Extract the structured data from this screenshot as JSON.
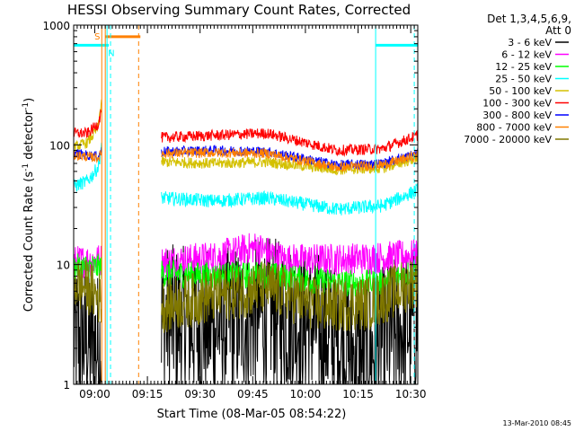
{
  "chart_data": {
    "type": "line",
    "title": "HESSI Observing Summary Count Rates, Corrected",
    "xlabel": "Start Time (08-Mar-05 08:54:22)",
    "ylabel_main": "Corrected Count Rate (s",
    "ylabel_sup1": "-1",
    "ylabel_mid": " detector",
    "ylabel_sup2": "-1",
    "ylabel_end": ")",
    "y_scale": "log",
    "ylim": [
      1,
      1000
    ],
    "xlim_min": [
      0,
      98
    ],
    "x_ticks": [
      {
        "min": 6,
        "label": "09:00"
      },
      {
        "min": 21,
        "label": "09:15"
      },
      {
        "min": 36,
        "label": "09:30"
      },
      {
        "min": 51,
        "label": "09:45"
      },
      {
        "min": 66,
        "label": "10:00"
      },
      {
        "min": 81,
        "label": "10:15"
      },
      {
        "min": 96,
        "label": "10:30"
      }
    ],
    "y_ticks": [
      {
        "value": 1,
        "label": "1"
      },
      {
        "value": 10,
        "label": "10"
      },
      {
        "value": 100,
        "label": "100"
      },
      {
        "value": 1000,
        "label": "1000"
      }
    ],
    "legend": {
      "placement": "right",
      "header_line1": "Det 1,3,4,5,6,9,",
      "header_line2": "Att 0",
      "entries": [
        {
          "label": "3 - 6 keV",
          "color": "#000000"
        },
        {
          "label": "6 - 12 keV",
          "color": "#ff00ff"
        },
        {
          "label": "12 - 25 keV",
          "color": "#00ff00"
        },
        {
          "label": "25 - 50 keV",
          "color": "#00ffff"
        },
        {
          "label": "50 - 100 keV",
          "color": "#d4c000"
        },
        {
          "label": "100 - 300 keV",
          "color": "#ff0000"
        },
        {
          "label": "300 - 800 keV",
          "color": "#0000ff"
        },
        {
          "label": "800 - 7000 keV",
          "color": "#ff8000"
        },
        {
          "label": "7000 - 20000 keV",
          "color": "#807800"
        }
      ]
    },
    "segments": [
      {
        "start": 0,
        "end": 8
      },
      {
        "start": 25,
        "end": 98
      }
    ],
    "series": [
      {
        "name": "3 - 6 keV",
        "color": "#000000",
        "noise": 0.28,
        "points": [
          [
            0,
            2.5
          ],
          [
            8,
            2.0
          ],
          [
            25,
            3.5
          ],
          [
            40,
            3.0
          ],
          [
            55,
            4.0
          ],
          [
            70,
            3.0
          ],
          [
            82,
            1.6
          ],
          [
            90,
            2.5
          ],
          [
            98,
            3.5
          ]
        ]
      },
      {
        "name": "6 - 12 keV",
        "color": "#ff00ff",
        "noise": 0.06,
        "points": [
          [
            0,
            10.5
          ],
          [
            8,
            11
          ],
          [
            25,
            10.5
          ],
          [
            40,
            11.5
          ],
          [
            52,
            14
          ],
          [
            60,
            11
          ],
          [
            75,
            11
          ],
          [
            90,
            11.5
          ],
          [
            98,
            12
          ]
        ]
      },
      {
        "name": "12 - 25 keV",
        "color": "#00ff00",
        "noise": 0.05,
        "points": [
          [
            0,
            9.5
          ],
          [
            8,
            9.5
          ],
          [
            25,
            8.5
          ],
          [
            40,
            8.0
          ],
          [
            55,
            8.2
          ],
          [
            75,
            7.0
          ],
          [
            88,
            7.0
          ],
          [
            98,
            9.0
          ]
        ]
      },
      {
        "name": "25 - 50 keV",
        "color": "#00ffff",
        "noise": 0.025,
        "points": [
          [
            0,
            45
          ],
          [
            4,
            50
          ],
          [
            7,
            65
          ],
          [
            8,
            100
          ],
          [
            25,
            36
          ],
          [
            40,
            34
          ],
          [
            55,
            36
          ],
          [
            75,
            29
          ],
          [
            88,
            31
          ],
          [
            98,
            42
          ]
        ]
      },
      {
        "name": "50 - 100 keV",
        "color": "#d4c000",
        "noise": 0.02,
        "points": [
          [
            0,
            95
          ],
          [
            4,
            105
          ],
          [
            7,
            140
          ],
          [
            8,
            250
          ],
          [
            25,
            72
          ],
          [
            40,
            70
          ],
          [
            55,
            72
          ],
          [
            75,
            62
          ],
          [
            88,
            64
          ],
          [
            98,
            78
          ]
        ]
      },
      {
        "name": "100 - 300 keV",
        "color": "#ff0000",
        "noise": 0.02,
        "points": [
          [
            0,
            125
          ],
          [
            4,
            125
          ],
          [
            7,
            150
          ],
          [
            8,
            200
          ],
          [
            25,
            115
          ],
          [
            40,
            120
          ],
          [
            55,
            125
          ],
          [
            75,
            90
          ],
          [
            88,
            93
          ],
          [
            98,
            120
          ]
        ]
      },
      {
        "name": "300 - 800 keV",
        "color": "#0000ff",
        "noise": 0.018,
        "points": [
          [
            0,
            85
          ],
          [
            7,
            80
          ],
          [
            8,
            90
          ],
          [
            25,
            88
          ],
          [
            40,
            90
          ],
          [
            55,
            88
          ],
          [
            75,
            68
          ],
          [
            88,
            70
          ],
          [
            98,
            85
          ]
        ]
      },
      {
        "name": "800 - 7000 keV",
        "color": "#ff8000",
        "noise": 0.018,
        "points": [
          [
            0,
            82
          ],
          [
            7,
            78
          ],
          [
            8,
            85
          ],
          [
            25,
            85
          ],
          [
            40,
            86
          ],
          [
            55,
            85
          ],
          [
            75,
            65
          ],
          [
            88,
            68
          ],
          [
            98,
            82
          ]
        ]
      },
      {
        "name": "7000 - 20000 keV",
        "color": "#807800",
        "noise": 0.1,
        "points": [
          [
            0,
            7
          ],
          [
            4,
            6.5
          ],
          [
            8,
            5
          ],
          [
            25,
            4.5
          ],
          [
            40,
            5.5
          ],
          [
            55,
            6.5
          ],
          [
            70,
            4.5
          ],
          [
            85,
            4.8
          ],
          [
            98,
            7.5
          ]
        ]
      }
    ],
    "annotations": {
      "saa_label": "S",
      "night_label": "N",
      "saa_color": "#ff8000",
      "night_color": "#00ffff",
      "saa_bar": {
        "start": 9,
        "end": 19,
        "level": 800
      },
      "night_bars": [
        {
          "start": 0,
          "end": 10,
          "level": 680
        },
        {
          "start": 86,
          "end": 98,
          "level": 680
        }
      ],
      "night_lines": [
        9.5,
        10.5,
        86,
        97
      ],
      "saa_lines": [
        8,
        9,
        18.5
      ],
      "saa_dashed": [
        18.5
      ]
    }
  },
  "footer_timestamp": "13-Mar-2010 08:45"
}
